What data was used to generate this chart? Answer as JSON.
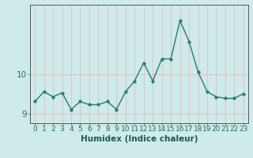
{
  "x": [
    0,
    1,
    2,
    3,
    4,
    5,
    6,
    7,
    8,
    9,
    10,
    11,
    12,
    13,
    14,
    15,
    16,
    17,
    18,
    19,
    20,
    21,
    22,
    23
  ],
  "y": [
    9.3,
    9.55,
    9.42,
    9.52,
    9.1,
    9.3,
    9.22,
    9.22,
    9.3,
    9.1,
    9.55,
    9.82,
    10.28,
    9.82,
    10.38,
    10.38,
    11.35,
    10.82,
    10.05,
    9.55,
    9.42,
    9.38,
    9.38,
    9.5
  ],
  "title": "",
  "xlabel": "Humidex (Indice chaleur)",
  "ylabel": "",
  "xlim": [
    -0.5,
    23.5
  ],
  "ylim": [
    8.75,
    11.75
  ],
  "yticks": [
    9,
    10
  ],
  "xticks": [
    0,
    1,
    2,
    3,
    4,
    5,
    6,
    7,
    8,
    9,
    10,
    11,
    12,
    13,
    14,
    15,
    16,
    17,
    18,
    19,
    20,
    21,
    22,
    23
  ],
  "bg_color": "#ceeaea",
  "line_color": "#2a7a70",
  "marker_color": "#2a7a70",
  "grid_color": "#e8b8b8",
  "axis_color": "#555555",
  "tick_label_color": "#2a6a60",
  "xlabel_color": "#1a5a50",
  "xlabel_fontsize": 7.5,
  "tick_fontsize": 6.5,
  "ytick_fontsize": 7.5,
  "line_width": 1.0,
  "marker_size": 2.5
}
